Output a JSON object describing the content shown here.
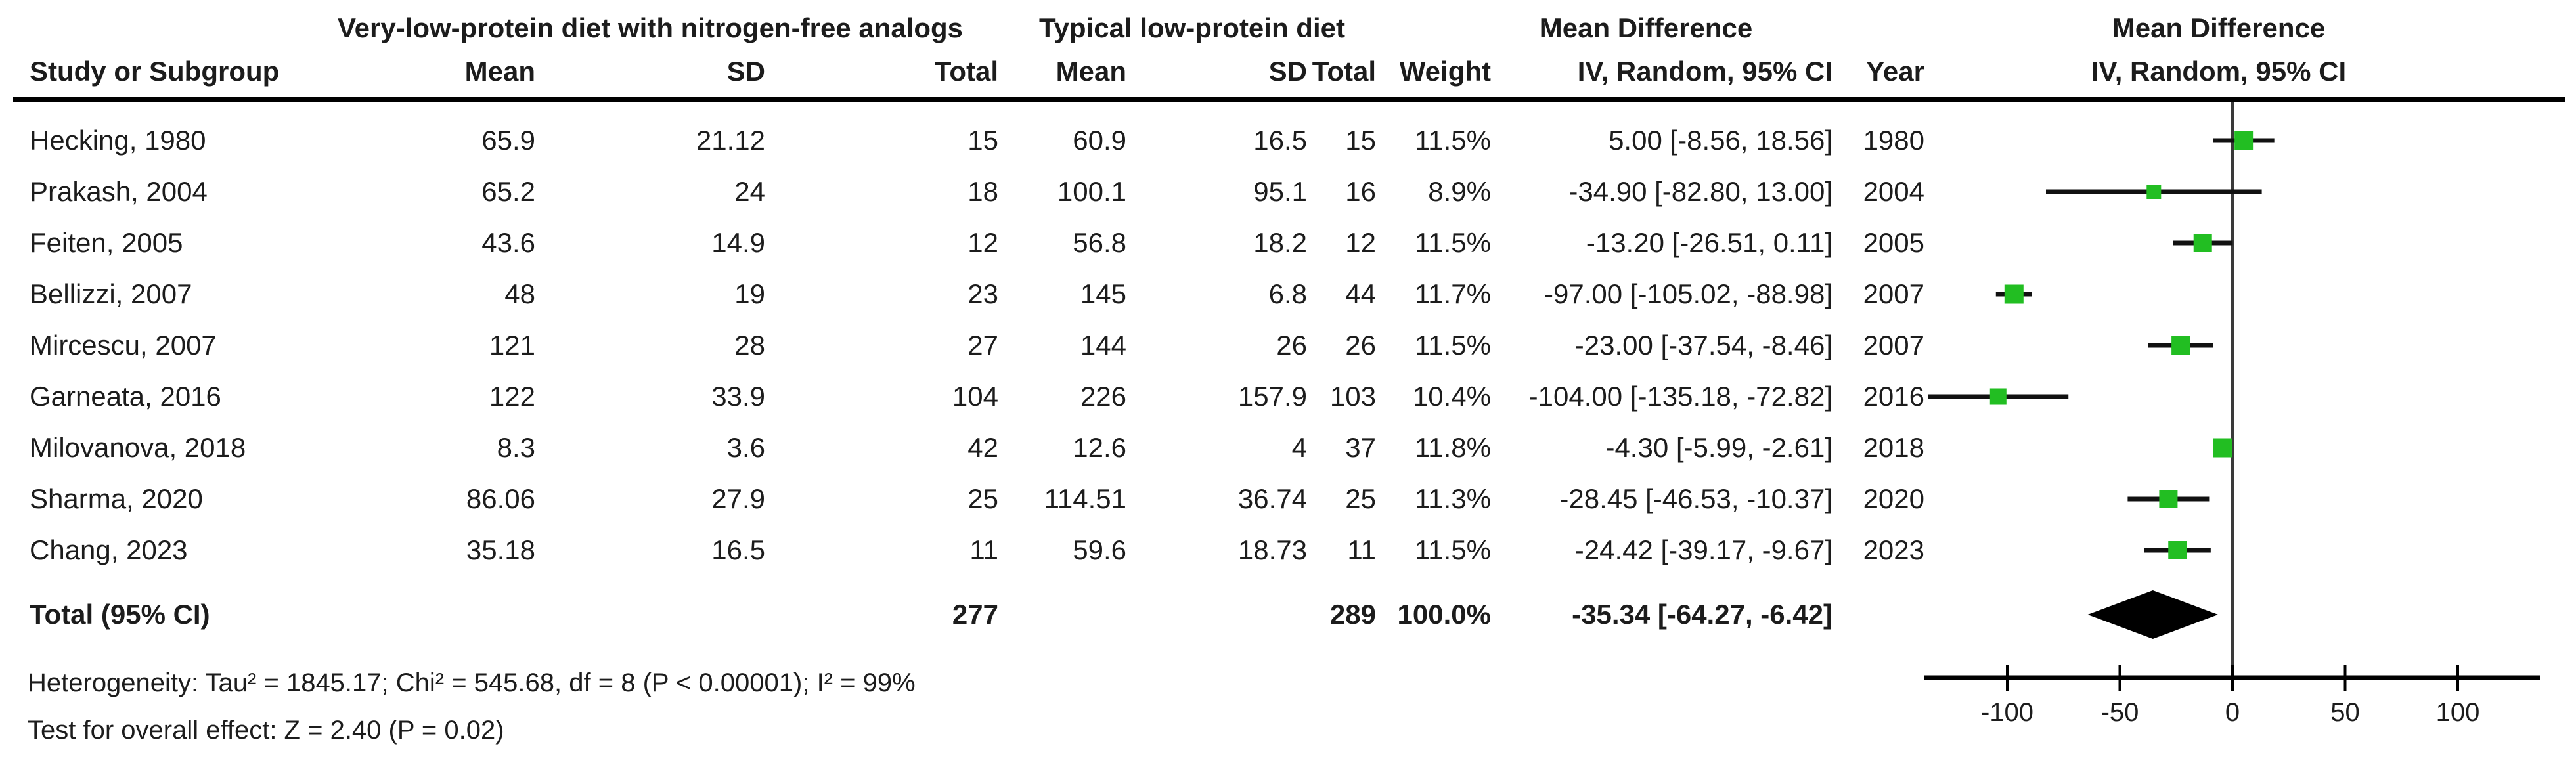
{
  "header": {
    "group1": "Very-low-protein diet with nitrogen-free analogs",
    "group2": "Typical low-protein diet",
    "md1": "Mean Difference",
    "md2": "Mean Difference",
    "col_study": "Study or Subgroup",
    "col_mean1": "Mean",
    "col_sd1": "SD",
    "col_total1": "Total",
    "col_mean2": "Mean",
    "col_sd2": "SD",
    "col_total2": "Total",
    "col_weight": "Weight",
    "col_iv1": "IV, Random, 95% CI",
    "col_year": "Year",
    "col_iv2": "IV, Random, 95% CI"
  },
  "chart_data": {
    "type": "forest",
    "effect_measure": "Mean Difference",
    "model": "IV, Random, 95% CI",
    "studies": [
      {
        "study": "Hecking, 1980",
        "mean1": "65.9",
        "sd1": "21.12",
        "total1": "15",
        "mean2": "60.9",
        "sd2": "16.5",
        "total2": "15",
        "weight": "11.5%",
        "estimate": "5.00 [-8.56, 18.56]",
        "year": "1980",
        "md": 5.0,
        "ci_low": -8.56,
        "ci_high": 18.56,
        "weight_pct": 11.5
      },
      {
        "study": "Prakash, 2004",
        "mean1": "65.2",
        "sd1": "24",
        "total1": "18",
        "mean2": "100.1",
        "sd2": "95.1",
        "total2": "16",
        "weight": "8.9%",
        "estimate": "-34.90 [-82.80, 13.00]",
        "year": "2004",
        "md": -34.9,
        "ci_low": -82.8,
        "ci_high": 13.0,
        "weight_pct": 8.9
      },
      {
        "study": "Feiten, 2005",
        "mean1": "43.6",
        "sd1": "14.9",
        "total1": "12",
        "mean2": "56.8",
        "sd2": "18.2",
        "total2": "12",
        "weight": "11.5%",
        "estimate": "-13.20 [-26.51, 0.11]",
        "year": "2005",
        "md": -13.2,
        "ci_low": -26.51,
        "ci_high": 0.11,
        "weight_pct": 11.5
      },
      {
        "study": "Bellizzi, 2007",
        "mean1": "48",
        "sd1": "19",
        "total1": "23",
        "mean2": "145",
        "sd2": "6.8",
        "total2": "44",
        "weight": "11.7%",
        "estimate": "-97.00 [-105.02, -88.98]",
        "year": "2007",
        "md": -97.0,
        "ci_low": -105.02,
        "ci_high": -88.98,
        "weight_pct": 11.7
      },
      {
        "study": "Mircescu, 2007",
        "mean1": "121",
        "sd1": "28",
        "total1": "27",
        "mean2": "144",
        "sd2": "26",
        "total2": "26",
        "weight": "11.5%",
        "estimate": "-23.00 [-37.54, -8.46]",
        "year": "2007",
        "md": -23.0,
        "ci_low": -37.54,
        "ci_high": -8.46,
        "weight_pct": 11.5
      },
      {
        "study": "Garneata, 2016",
        "mean1": "122",
        "sd1": "33.9",
        "total1": "104",
        "mean2": "226",
        "sd2": "157.9",
        "total2": "103",
        "weight": "10.4%",
        "estimate": "-104.00 [-135.18, -72.82]",
        "year": "2016",
        "md": -104.0,
        "ci_low": -135.18,
        "ci_high": -72.82,
        "weight_pct": 10.4
      },
      {
        "study": "Milovanova, 2018",
        "mean1": "8.3",
        "sd1": "3.6",
        "total1": "42",
        "mean2": "12.6",
        "sd2": "4",
        "total2": "37",
        "weight": "11.8%",
        "estimate": "-4.30 [-5.99, -2.61]",
        "year": "2018",
        "md": -4.3,
        "ci_low": -5.99,
        "ci_high": -2.61,
        "weight_pct": 11.8
      },
      {
        "study": "Sharma, 2020",
        "mean1": "86.06",
        "sd1": "27.9",
        "total1": "25",
        "mean2": "114.51",
        "sd2": "36.74",
        "total2": "25",
        "weight": "11.3%",
        "estimate": "-28.45 [-46.53, -10.37]",
        "year": "2020",
        "md": -28.45,
        "ci_low": -46.53,
        "ci_high": -10.37,
        "weight_pct": 11.3
      },
      {
        "study": "Chang, 2023",
        "mean1": "35.18",
        "sd1": "16.5",
        "total1": "11",
        "mean2": "59.6",
        "sd2": "18.73",
        "total2": "11",
        "weight": "11.5%",
        "estimate": "-24.42 [-39.17, -9.67]",
        "year": "2023",
        "md": -24.42,
        "ci_low": -39.17,
        "ci_high": -9.67,
        "weight_pct": 11.5
      }
    ],
    "total": {
      "label": "Total (95% CI)",
      "total1": "277",
      "total2": "289",
      "weight": "100.0%",
      "estimate": "-35.34 [-64.27, -6.42]",
      "md": -35.34,
      "ci_low": -64.27,
      "ci_high": -6.42
    },
    "heterogeneity": "Heterogeneity: Tau² = 1845.17; Chi² = 545.68, df = 8 (P < 0.00001); I² = 99%",
    "overall_effect": "Test for overall effect: Z = 2.40 (P = 0.02)",
    "axis": {
      "ticks": [
        -100,
        -50,
        0,
        50,
        100
      ],
      "min": -137,
      "max": 137
    },
    "colors": {
      "square": "#22be22",
      "ci_line": "#111111",
      "diamond": "#000000",
      "axis": "#000000",
      "zero_line": "#3a3a3a",
      "text": "#1c1c1c"
    }
  }
}
